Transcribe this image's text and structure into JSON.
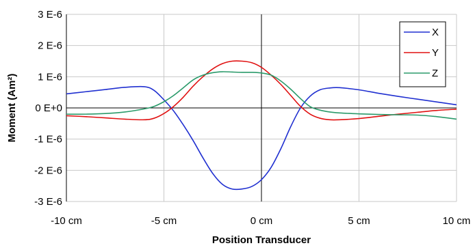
{
  "chart_data": {
    "type": "line",
    "xlabel": "Position Transducer",
    "ylabel": "Moment (Am²)",
    "xlim": [
      -10,
      10
    ],
    "ylim": [
      -3e-06,
      3e-06
    ],
    "x_ticks": [
      {
        "value": -10,
        "label": "-10 cm"
      },
      {
        "value": -5,
        "label": "-5 cm"
      },
      {
        "value": 0,
        "label": "0 cm"
      },
      {
        "value": 5,
        "label": "5 cm"
      },
      {
        "value": 10,
        "label": "10 cm"
      }
    ],
    "y_ticks": [
      {
        "value": 3e-06,
        "label": "3 E-6"
      },
      {
        "value": 2e-06,
        "label": "2 E-6"
      },
      {
        "value": 1e-06,
        "label": "1 E-6"
      },
      {
        "value": 0,
        "label": "0 E+0"
      },
      {
        "value": -1e-06,
        "label": "-1 E-6"
      },
      {
        "value": -2e-06,
        "label": "-2 E-6"
      },
      {
        "value": -3e-06,
        "label": "-3 E-6"
      }
    ],
    "grid": true,
    "legend_position": "top-right",
    "series": [
      {
        "name": "X",
        "color": "#1f2fd0",
        "x": [
          -10,
          -9,
          -8,
          -7,
          -6,
          -5.5,
          -5,
          -4.5,
          -4,
          -3.5,
          -3,
          -2.5,
          -2,
          -1.5,
          -1,
          -0.5,
          0,
          0.5,
          1,
          1.5,
          2,
          2.5,
          3,
          3.5,
          4,
          5,
          6,
          7,
          8,
          9,
          10
        ],
        "y": [
          4.5e-07,
          5.2e-07,
          5.9e-07,
          6.6e-07,
          6.8e-07,
          5.6e-07,
          2.6e-07,
          -1e-07,
          -5.5e-07,
          -1.05e-06,
          -1.6e-06,
          -2.1e-06,
          -2.45e-06,
          -2.6e-06,
          -2.6e-06,
          -2.52e-06,
          -2.3e-06,
          -1.9e-06,
          -1.3e-06,
          -6e-07,
          0.0,
          3.8e-07,
          5.8e-07,
          6.4e-07,
          6.5e-07,
          5.8e-07,
          4.7e-07,
          3.7e-07,
          2.8e-07,
          1.9e-07,
          1e-07
        ]
      },
      {
        "name": "Y",
        "color": "#e01010",
        "x": [
          -10,
          -9,
          -8,
          -7,
          -6,
          -5.5,
          -5,
          -4.5,
          -4,
          -3.5,
          -3,
          -2.5,
          -2,
          -1.5,
          -1,
          -0.5,
          0,
          0.5,
          1,
          1.5,
          2,
          2.5,
          3,
          3.5,
          4,
          5,
          6,
          7,
          8,
          9,
          10
        ],
        "y": [
          -2.5e-07,
          -2.8e-07,
          -3.2e-07,
          -3.6e-07,
          -3.8e-07,
          -3.3e-07,
          -1.8e-07,
          5e-08,
          3.5e-07,
          7e-07,
          1e-06,
          1.25e-06,
          1.42e-06,
          1.5e-06,
          1.5e-06,
          1.45e-06,
          1.3e-06,
          1.05e-06,
          7.5e-07,
          4e-07,
          5e-08,
          -2e-07,
          -3.3e-07,
          -3.8e-07,
          -3.8e-07,
          -3.4e-07,
          -2.7e-07,
          -2e-07,
          -1.4e-07,
          -8e-08,
          -4e-08
        ]
      },
      {
        "name": "Z",
        "color": "#2a9a6a",
        "x": [
          -10,
          -9,
          -8,
          -7,
          -6,
          -5.5,
          -5,
          -4.5,
          -4,
          -3.5,
          -3,
          -2.5,
          -2,
          -1.5,
          -1,
          -0.5,
          0,
          0.5,
          1,
          1.5,
          2,
          2.5,
          3,
          3.5,
          4,
          5,
          6,
          7,
          8,
          9,
          10
        ],
        "y": [
          -2e-07,
          -2e-07,
          -1.8e-07,
          -1.3e-07,
          -3e-08,
          5e-08,
          2e-07,
          4e-07,
          6.5e-07,
          9e-07,
          1.05e-06,
          1.13e-06,
          1.16e-06,
          1.15e-06,
          1.14e-06,
          1.14e-06,
          1.12e-06,
          1.05e-06,
          8.6e-07,
          6e-07,
          3e-07,
          4e-08,
          -7e-08,
          -1.3e-07,
          -1.6e-07,
          -1.9e-07,
          -2.1e-07,
          -2.2e-07,
          -2.3e-07,
          -2.8e-07,
          -3.6e-07
        ]
      }
    ]
  }
}
